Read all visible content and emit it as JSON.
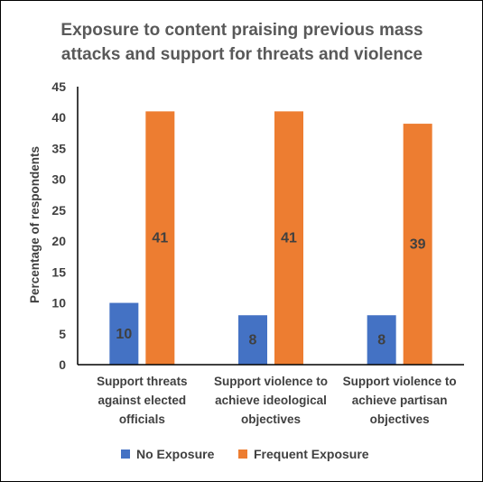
{
  "chart_data": {
    "type": "bar",
    "title_lines": [
      "Exposure to content praising previous mass",
      "attacks and support for threats and violence"
    ],
    "xlabel": "",
    "ylabel": "Percentage of respondents",
    "ylim": [
      0,
      45
    ],
    "yticks": [
      0,
      5,
      10,
      15,
      20,
      25,
      30,
      35,
      40,
      45
    ],
    "grid": false,
    "legend_position": "bottom",
    "categories": [
      [
        "Support threats",
        "against elected",
        "officials"
      ],
      [
        "Support violence to",
        "achieve ideological",
        "objectives"
      ],
      [
        "Support violence to",
        "achieve partisan",
        "objectives"
      ]
    ],
    "series": [
      {
        "name": "No Exposure",
        "color": "#4472c4",
        "values": [
          10,
          8,
          8
        ]
      },
      {
        "name": "Frequent Exposure",
        "color": "#ed7d31",
        "values": [
          41,
          41,
          39
        ]
      }
    ]
  }
}
